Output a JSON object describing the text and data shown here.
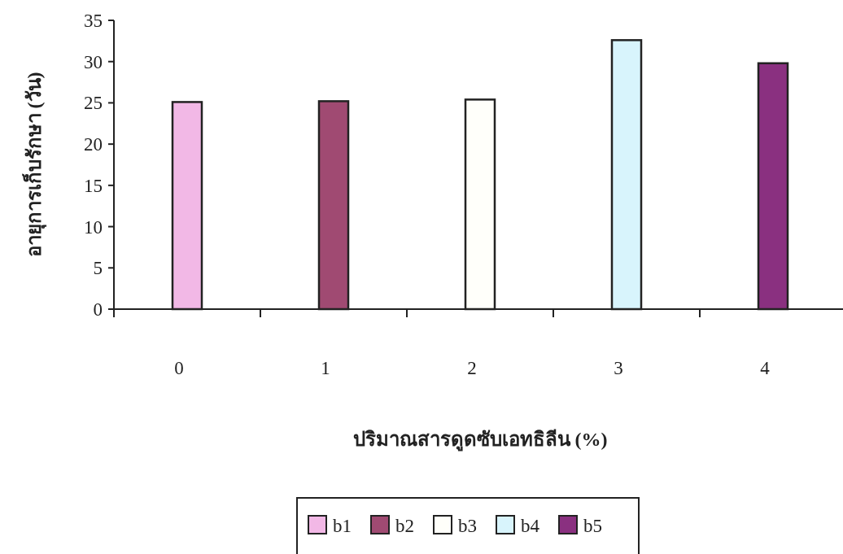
{
  "chart_data": {
    "type": "bar",
    "xlabel": "ปริมาณสารดูดซับเอทธิลีน (%)",
    "ylabel": "อายุการเก็บรักษา (วัน)",
    "categories": [
      "0",
      "1",
      "2",
      "3",
      "4"
    ],
    "series": [
      {
        "name": "b1",
        "color": "#f2b8e6",
        "values": [
          25.1,
          null,
          null,
          null,
          null
        ]
      },
      {
        "name": "b2",
        "color": "#a04a72",
        "values": [
          null,
          25.2,
          null,
          null,
          null
        ]
      },
      {
        "name": "b3",
        "color": "#fffffa",
        "values": [
          null,
          null,
          25.4,
          null,
          null
        ]
      },
      {
        "name": "b4",
        "color": "#d8f4fc",
        "values": [
          null,
          null,
          null,
          32.6,
          null
        ]
      },
      {
        "name": "b5",
        "color": "#8a3080",
        "values": [
          null,
          null,
          null,
          null,
          29.8
        ]
      }
    ],
    "ylim": [
      0,
      35
    ],
    "yticks": [
      0,
      5,
      10,
      15,
      20,
      25,
      30,
      35
    ],
    "legend": "bottom",
    "grid": false
  }
}
